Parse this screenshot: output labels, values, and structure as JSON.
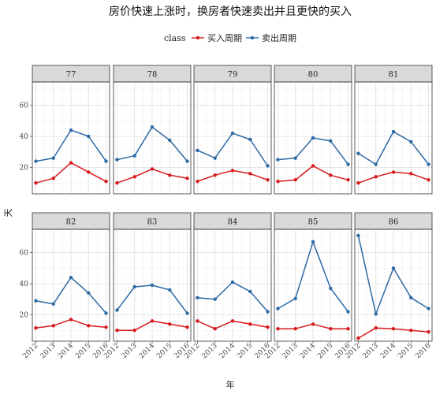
{
  "chart_data": {
    "type": "line",
    "title": "房价快速上涨时，换房者快速卖出并且更快的买入",
    "xlabel": "年",
    "ylabel": "天",
    "legend": {
      "title": "class",
      "position": "top"
    },
    "categories": [
      "2012",
      "2013",
      "2014",
      "2015",
      "2016"
    ],
    "ylim": [
      3,
      75
    ],
    "yticks": [
      20,
      40,
      60
    ],
    "series_styles": [
      {
        "name": "买入周期",
        "color": "#d7191c"
      },
      {
        "name": "卖出周期",
        "color": "#2c6aa6"
      }
    ],
    "panels": [
      {
        "label": "77",
        "series": [
          {
            "name": "买入周期",
            "values": [
              10,
              13,
              23,
              17,
              11
            ]
          },
          {
            "name": "卖出周期",
            "values": [
              24,
              26,
              44,
              40,
              24
            ]
          }
        ]
      },
      {
        "label": "78",
        "series": [
          {
            "name": "买入周期",
            "values": [
              10,
              14,
              19,
              15,
              13
            ]
          },
          {
            "name": "卖出周期",
            "values": [
              25,
              27.5,
              46,
              37.5,
              24
            ]
          }
        ]
      },
      {
        "label": "79",
        "series": [
          {
            "name": "买入周期",
            "values": [
              11,
              15,
              18,
              16,
              12
            ]
          },
          {
            "name": "卖出周期",
            "values": [
              31,
              26,
              42,
              38,
              21
            ]
          }
        ]
      },
      {
        "label": "80",
        "series": [
          {
            "name": "买入周期",
            "values": [
              11,
              12,
              21,
              15,
              12
            ]
          },
          {
            "name": "卖出周期",
            "values": [
              25,
              26,
              39,
              37,
              22
            ]
          }
        ]
      },
      {
        "label": "81",
        "series": [
          {
            "name": "买入周期",
            "values": [
              10,
              14,
              17,
              16,
              12
            ]
          },
          {
            "name": "卖出周期",
            "values": [
              29,
              22,
              43,
              36.5,
              22
            ]
          }
        ]
      },
      {
        "label": "82",
        "series": [
          {
            "name": "买入周期",
            "values": [
              11.5,
              13,
              17,
              13,
              12
            ]
          },
          {
            "name": "卖出周期",
            "values": [
              29,
              27,
              44,
              34,
              21
            ]
          }
        ]
      },
      {
        "label": "83",
        "series": [
          {
            "name": "买入周期",
            "values": [
              10,
              10,
              16,
              14,
              12
            ]
          },
          {
            "name": "卖出周期",
            "values": [
              23,
              38,
              39,
              36,
              21
            ]
          }
        ]
      },
      {
        "label": "84",
        "series": [
          {
            "name": "买入周期",
            "values": [
              16,
              11,
              16,
              14,
              12
            ]
          },
          {
            "name": "卖出周期",
            "values": [
              31,
              30,
              41,
              35,
              22
            ]
          }
        ]
      },
      {
        "label": "85",
        "series": [
          {
            "name": "买入周期",
            "values": [
              11,
              11,
              14,
              11,
              11
            ]
          },
          {
            "name": "卖出周期",
            "values": [
              24,
              30.5,
              67,
              37,
              22
            ]
          }
        ]
      },
      {
        "label": "86",
        "series": [
          {
            "name": "买入周期",
            "values": [
              5,
              11.5,
              11,
              10,
              9
            ]
          },
          {
            "name": "卖出周期",
            "values": [
              71,
              20.5,
              50,
              31,
              24
            ]
          }
        ]
      }
    ]
  }
}
